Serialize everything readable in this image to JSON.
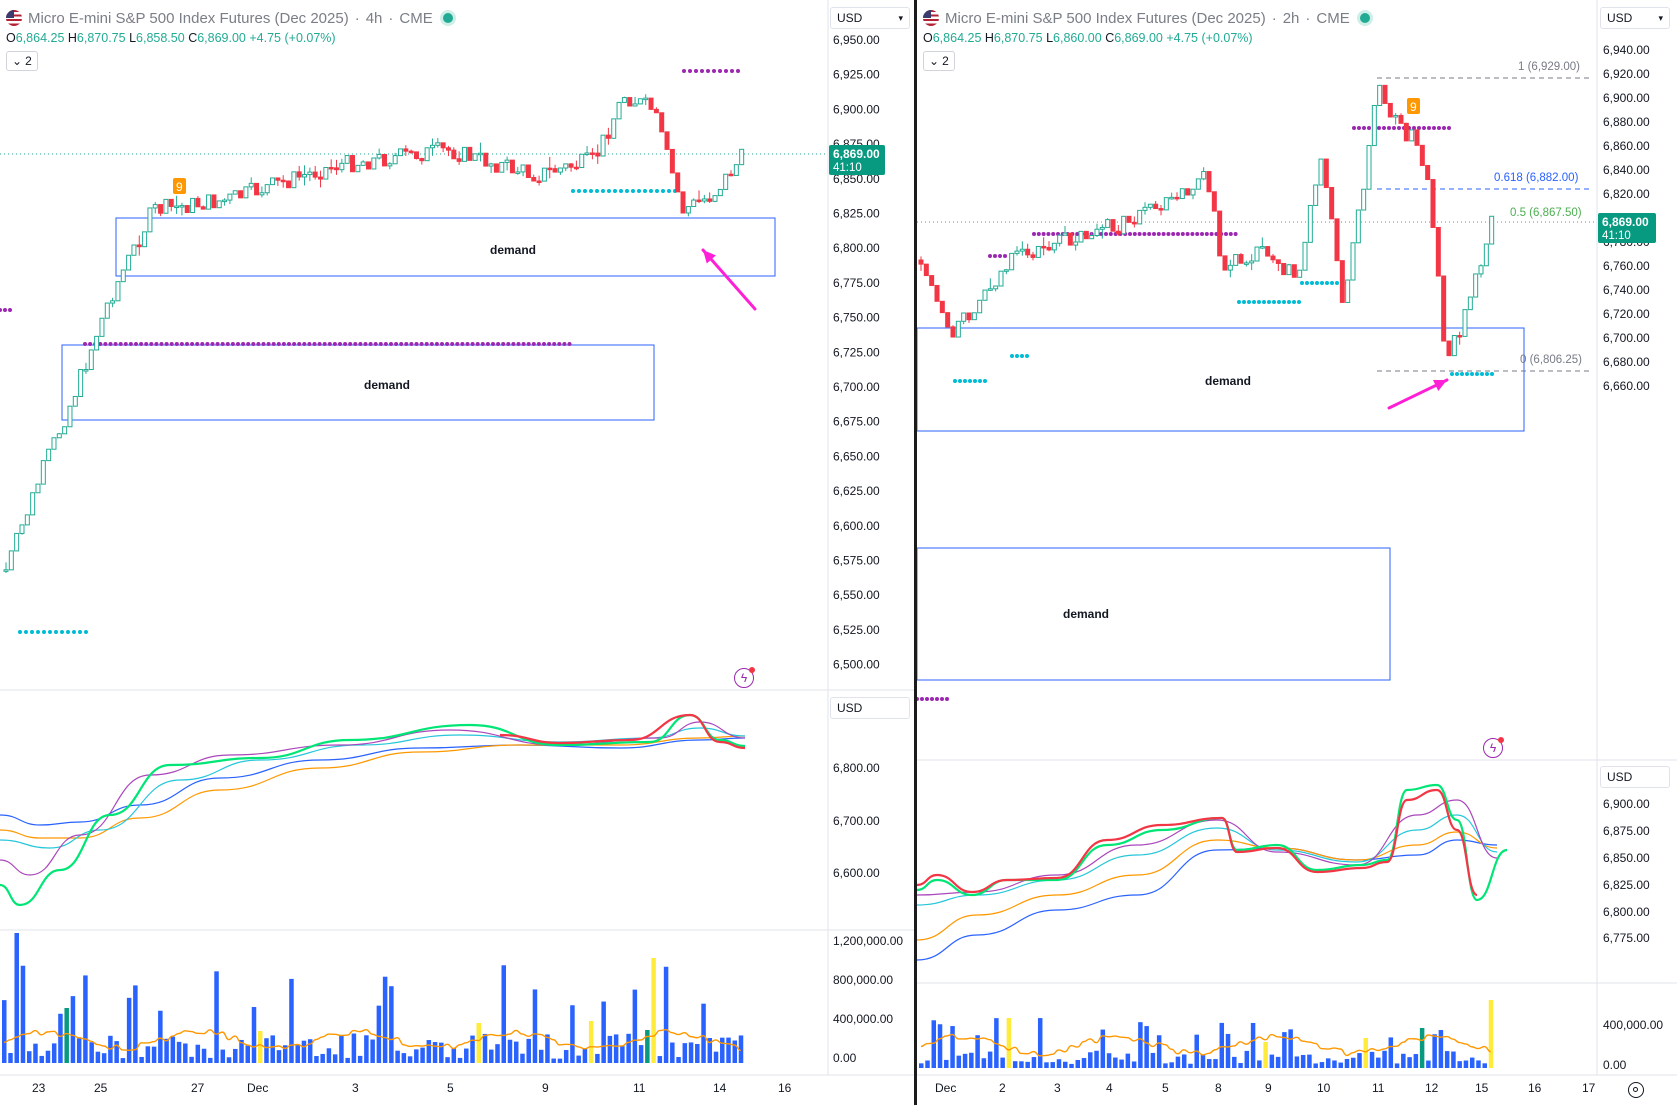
{
  "left_chart": {
    "symbol_title": "Micro E-mini S&P 500 Index Futures (Dec 2025)",
    "interval": "4h",
    "exchange": "CME",
    "ohlc": {
      "o": "6,864.25",
      "h": "6,870.75",
      "l": "6,858.50",
      "c": "6,869.00",
      "change": "+4.75 (+0.07%)"
    },
    "indicator_count": "2",
    "currency": "USD",
    "price_ticks": [
      "6,950.00",
      "6,925.00",
      "6,900.00",
      "6,875.00",
      "6,850.00",
      "6,825.00",
      "6,800.00",
      "6,775.00",
      "6,750.00",
      "6,725.00",
      "6,700.00",
      "6,675.00",
      "6,650.00",
      "6,625.00",
      "6,600.00",
      "6,575.00",
      "6,550.00",
      "6,525.00",
      "6,500.00"
    ],
    "last_price": "6,869.00",
    "countdown": "41:10",
    "demand_label_1": "demand",
    "demand_label_2": "demand",
    "sub1_currency": "USD",
    "sub1_ticks": [
      "6,800.00",
      "6,700.00",
      "6,600.00"
    ],
    "volume_ticks": [
      "1,200,000.00",
      "800,000.00",
      "400,000.00",
      "0.00"
    ],
    "date_ticks": [
      "23",
      "25",
      "27",
      "Dec",
      "3",
      "5",
      "9",
      "11",
      "14",
      "16"
    ],
    "sequential_label": "9"
  },
  "right_chart": {
    "symbol_title": "Micro E-mini S&P 500 Index Futures (Dec 2025)",
    "interval": "2h",
    "exchange": "CME",
    "ohlc": {
      "o": "6,864.25",
      "h": "6,870.75",
      "l": "6,860.00",
      "c": "6,869.00",
      "change": "+4.75 (+0.07%)"
    },
    "indicator_count": "2",
    "currency": "USD",
    "price_ticks": [
      "6,940.00",
      "6,920.00",
      "6,900.00",
      "6,880.00",
      "6,860.00",
      "6,840.00",
      "6,820.00",
      "6,800.00",
      "6,780.00",
      "6,760.00",
      "6,740.00",
      "6,720.00",
      "6,700.00",
      "6,680.00",
      "6,660.00"
    ],
    "last_price": "6,869.00",
    "countdown": "41:10",
    "fib_levels": {
      "level_1": "1 (6,929.00)",
      "level_618": "0.618 (6,882.00)",
      "level_05": "0.5 (6,867.50)",
      "level_0": "0 (6,806.25)"
    },
    "demand_label_1": "demand",
    "demand_label_2": "demand",
    "sub1_currency": "USD",
    "sub1_ticks": [
      "6,900.00",
      "6,875.00",
      "6,850.00",
      "6,825.00",
      "6,800.00",
      "6,775.00"
    ],
    "volume_ticks": [
      "400,000.00",
      "0.00"
    ],
    "date_ticks": [
      "Dec",
      "2",
      "3",
      "4",
      "5",
      "8",
      "9",
      "10",
      "11",
      "12",
      "15",
      "16",
      "17"
    ],
    "sequential_label": "9"
  },
  "colors": {
    "up": "#22ab94",
    "down": "#f23645",
    "demand_box": "#2962ff",
    "arrow": "#ff1fd6",
    "resistance_dots": "#9c27b0",
    "support_dots": "#00bcd4",
    "volume": "#2962ff",
    "volume_highlight": "#ffeb3b",
    "volume_ma": "#ff9800"
  }
}
